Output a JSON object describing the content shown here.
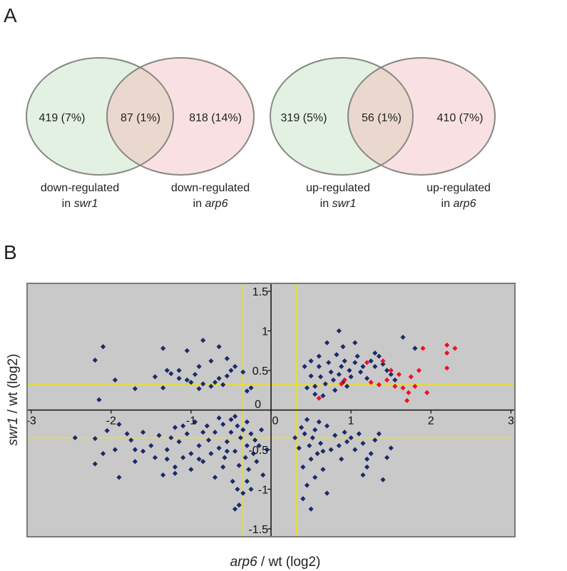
{
  "panels": {
    "a": "A",
    "b": "B"
  },
  "venn": [
    {
      "left_count": "419 (7%)",
      "overlap_count": "87 (1%)",
      "right_count": "818 (14%)",
      "left_label_line1": "down-regulated",
      "left_label_line2_prefix": "in ",
      "left_label_line2_gene": "swr1",
      "right_label_line1": "down-regulated",
      "right_label_line2_prefix": "in ",
      "right_label_line2_gene": "arp6"
    },
    {
      "left_count": "319 (5%)",
      "overlap_count": "56 (1%)",
      "right_count": "410 (7%)",
      "left_label_line1": "up-regulated",
      "left_label_line2_prefix": "in ",
      "left_label_line2_gene": "swr1",
      "right_label_line1": "up-regulated",
      "right_label_line2_prefix": "in ",
      "right_label_line2_gene": "arp6"
    }
  ],
  "colors": {
    "venn_left_fill": "#e3f1e2",
    "venn_right_fill": "#f9e1e3",
    "venn_overlap_fill": "#ead8cf",
    "venn_stroke": "#888884",
    "plot_bg": "#c9c9c9",
    "plot_border": "#7a7a7a",
    "threshold_line": "#f2e500",
    "blue_point": "#1b2a6b",
    "red_point": "#ee1122"
  },
  "chart_data": {
    "type": "scatter",
    "title": "",
    "xlabel_italic": "arp6",
    "xlabel_rest": " / wt (log2)",
    "ylabel_italic": "swr1",
    "ylabel_rest": " / wt (log2)",
    "xlim": [
      -3.05,
      3.05
    ],
    "ylim": [
      -1.6,
      1.6
    ],
    "x_ticks": [
      -3,
      -2,
      -1,
      0,
      1,
      2,
      3
    ],
    "y_ticks": [
      -1.5,
      -1,
      -0.5,
      0,
      0.5,
      1,
      1.5
    ],
    "x_tick_labels": [
      "-3",
      "-2",
      "-1",
      "0",
      "1",
      "2",
      "3"
    ],
    "y_tick_labels": [
      "-1.5",
      "-1",
      "-0.5",
      "0",
      "0.5",
      "1",
      "1.5"
    ],
    "threshold_x": [
      -0.35,
      0.32
    ],
    "threshold_y": [
      -0.35,
      0.32
    ],
    "grid": false,
    "series": [
      {
        "color": "#1b2a6b",
        "points": [
          [
            -2.2,
            0.63
          ],
          [
            -2.1,
            0.8
          ],
          [
            -1.95,
            0.38
          ],
          [
            -2.15,
            0.13
          ],
          [
            -1.7,
            0.27
          ],
          [
            -1.35,
            0.28
          ],
          [
            -1.45,
            0.42
          ],
          [
            -1.3,
            0.5
          ],
          [
            -1.25,
            0.46
          ],
          [
            -1.15,
            0.4
          ],
          [
            -1.05,
            0.38
          ],
          [
            -1.0,
            0.35
          ],
          [
            -0.9,
            0.27
          ],
          [
            -0.85,
            0.33
          ],
          [
            -0.75,
            0.3
          ],
          [
            -0.7,
            0.35
          ],
          [
            -0.65,
            0.4
          ],
          [
            -0.6,
            0.32
          ],
          [
            -0.55,
            0.43
          ],
          [
            -0.5,
            0.5
          ],
          [
            -0.45,
            0.55
          ],
          [
            -0.55,
            0.65
          ],
          [
            -0.75,
            0.62
          ],
          [
            -0.9,
            0.55
          ],
          [
            -1.05,
            0.75
          ],
          [
            -1.35,
            0.78
          ],
          [
            -0.85,
            0.88
          ],
          [
            -0.65,
            0.8
          ],
          [
            -0.35,
            0.48
          ],
          [
            -0.3,
            0.24
          ],
          [
            -0.25,
            0.28
          ],
          [
            -0.95,
            0.45
          ],
          [
            -1.15,
            0.5
          ],
          [
            -2.45,
            -0.35
          ],
          [
            -2.2,
            -0.36
          ],
          [
            -2.05,
            -0.26
          ],
          [
            -1.9,
            -0.18
          ],
          [
            -1.8,
            -0.3
          ],
          [
            -1.7,
            -0.5
          ],
          [
            -1.75,
            -0.38
          ],
          [
            -1.6,
            -0.28
          ],
          [
            -1.5,
            -0.45
          ],
          [
            -1.4,
            -0.32
          ],
          [
            -1.3,
            -0.5
          ],
          [
            -1.2,
            -0.22
          ],
          [
            -1.15,
            -0.4
          ],
          [
            -1.05,
            -0.3
          ],
          [
            -1.0,
            -0.55
          ],
          [
            -0.95,
            -0.15
          ],
          [
            -0.9,
            -0.45
          ],
          [
            -0.85,
            -0.65
          ],
          [
            -0.8,
            -0.2
          ],
          [
            -0.78,
            -0.38
          ],
          [
            -0.75,
            -0.55
          ],
          [
            -0.7,
            -0.28
          ],
          [
            -0.65,
            -0.48
          ],
          [
            -0.6,
            -0.18
          ],
          [
            -0.58,
            -0.6
          ],
          [
            -0.55,
            -0.4
          ],
          [
            -0.5,
            -0.12
          ],
          [
            -0.5,
            -0.28
          ],
          [
            -0.45,
            -0.52
          ],
          [
            -0.42,
            -0.2
          ],
          [
            -0.4,
            -0.7
          ],
          [
            -0.38,
            -0.35
          ],
          [
            -0.35,
            -0.25
          ],
          [
            -0.32,
            -0.6
          ],
          [
            -0.3,
            -0.15
          ],
          [
            -0.3,
            -0.45
          ],
          [
            -0.28,
            -0.75
          ],
          [
            -0.25,
            -0.3
          ],
          [
            -0.22,
            -0.55
          ],
          [
            -0.2,
            -0.38
          ],
          [
            -0.18,
            -0.65
          ],
          [
            -0.15,
            -0.45
          ],
          [
            -0.12,
            -0.25
          ],
          [
            -0.1,
            -0.82
          ],
          [
            -0.05,
            -0.5
          ],
          [
            -0.3,
            -0.9
          ],
          [
            -0.42,
            -1.0
          ],
          [
            -0.4,
            -1.2
          ],
          [
            -0.45,
            -1.25
          ],
          [
            -0.35,
            -1.05
          ],
          [
            -0.25,
            -1.0
          ],
          [
            -0.48,
            -0.9
          ],
          [
            -1.0,
            -0.75
          ],
          [
            -1.1,
            -0.6
          ],
          [
            -1.2,
            -0.72
          ],
          [
            -1.3,
            -0.62
          ],
          [
            -1.45,
            -0.6
          ],
          [
            -1.6,
            -0.52
          ],
          [
            -1.7,
            -0.65
          ],
          [
            -1.95,
            -0.5
          ],
          [
            -2.1,
            -0.55
          ],
          [
            -2.2,
            -0.68
          ],
          [
            -1.35,
            -0.82
          ],
          [
            -1.2,
            -0.8
          ],
          [
            -0.9,
            -0.62
          ],
          [
            -0.6,
            -0.72
          ],
          [
            -0.7,
            -0.85
          ],
          [
            -0.55,
            -0.52
          ],
          [
            -0.85,
            -0.28
          ],
          [
            -1.1,
            -0.2
          ],
          [
            -1.25,
            -0.35
          ],
          [
            -0.65,
            -0.1
          ],
          [
            -0.45,
            -0.08
          ],
          [
            -1.9,
            -0.85
          ],
          [
            0.45,
            0.28
          ],
          [
            0.5,
            0.43
          ],
          [
            0.55,
            0.3
          ],
          [
            0.6,
            0.55
          ],
          [
            0.62,
            0.42
          ],
          [
            0.68,
            0.33
          ],
          [
            0.72,
            0.6
          ],
          [
            0.75,
            0.48
          ],
          [
            0.78,
            0.38
          ],
          [
            0.8,
            0.25
          ],
          [
            0.82,
            0.7
          ],
          [
            0.85,
            0.45
          ],
          [
            0.88,
            0.55
          ],
          [
            0.9,
            0.35
          ],
          [
            0.92,
            0.62
          ],
          [
            0.95,
            0.3
          ],
          [
            0.98,
            0.5
          ],
          [
            1.0,
            0.42
          ],
          [
            1.05,
            0.6
          ],
          [
            1.08,
            0.68
          ],
          [
            1.12,
            0.48
          ],
          [
            1.15,
            0.55
          ],
          [
            1.2,
            0.4
          ],
          [
            1.25,
            0.62
          ],
          [
            1.3,
            0.55
          ],
          [
            1.35,
            0.68
          ],
          [
            1.4,
            0.58
          ],
          [
            1.45,
            0.5
          ],
          [
            1.5,
            0.45
          ],
          [
            1.55,
            0.38
          ],
          [
            0.7,
            0.85
          ],
          [
            0.85,
            1.0
          ],
          [
            1.05,
            0.85
          ],
          [
            0.6,
            0.68
          ],
          [
            0.55,
            0.2
          ],
          [
            0.5,
            0.62
          ],
          [
            0.65,
            0.18
          ],
          [
            1.3,
            0.72
          ],
          [
            1.65,
            0.92
          ],
          [
            1.8,
            0.78
          ],
          [
            0.42,
            0.55
          ],
          [
            0.9,
            0.8
          ],
          [
            0.38,
            -0.22
          ],
          [
            0.42,
            -0.3
          ],
          [
            0.45,
            -0.12
          ],
          [
            0.48,
            -0.45
          ],
          [
            0.5,
            -0.62
          ],
          [
            0.52,
            -0.35
          ],
          [
            0.55,
            -0.25
          ],
          [
            0.58,
            -0.55
          ],
          [
            0.6,
            -0.15
          ],
          [
            0.62,
            -0.42
          ],
          [
            0.7,
            -0.2
          ],
          [
            0.75,
            -0.5
          ],
          [
            0.8,
            -0.32
          ],
          [
            0.85,
            -0.45
          ],
          [
            0.88,
            -0.62
          ],
          [
            0.92,
            -0.28
          ],
          [
            0.95,
            -0.4
          ],
          [
            1.0,
            -0.35
          ],
          [
            1.05,
            -0.5
          ],
          [
            1.1,
            -0.3
          ],
          [
            1.15,
            -0.42
          ],
          [
            1.2,
            -0.72
          ],
          [
            1.25,
            -0.55
          ],
          [
            1.3,
            -0.38
          ],
          [
            1.35,
            -0.3
          ],
          [
            1.4,
            -0.88
          ],
          [
            1.45,
            -0.6
          ],
          [
            1.5,
            -0.48
          ],
          [
            0.35,
            -0.48
          ],
          [
            0.4,
            -0.72
          ],
          [
            0.45,
            -0.95
          ],
          [
            0.4,
            -1.12
          ],
          [
            0.5,
            -1.25
          ],
          [
            0.65,
            -0.75
          ],
          [
            0.55,
            -0.85
          ],
          [
            0.7,
            -1.05
          ],
          [
            0.3,
            -0.35
          ],
          [
            0.65,
            -0.52
          ],
          [
            1.2,
            -0.62
          ],
          [
            1.15,
            -0.82
          ]
        ]
      },
      {
        "color": "#ee1122",
        "points": [
          [
            1.2,
            0.6
          ],
          [
            1.4,
            0.62
          ],
          [
            1.5,
            0.5
          ],
          [
            1.6,
            0.45
          ],
          [
            1.75,
            0.42
          ],
          [
            1.85,
            0.5
          ],
          [
            1.9,
            0.78
          ],
          [
            2.2,
            0.82
          ],
          [
            2.3,
            0.78
          ],
          [
            2.2,
            0.53
          ],
          [
            2.2,
            0.72
          ],
          [
            1.25,
            0.35
          ],
          [
            1.35,
            0.32
          ],
          [
            1.45,
            0.38
          ],
          [
            1.55,
            0.3
          ],
          [
            1.65,
            0.28
          ],
          [
            1.72,
            0.22
          ],
          [
            1.7,
            0.12
          ],
          [
            1.95,
            0.22
          ],
          [
            1.8,
            0.3
          ],
          [
            0.88,
            0.33
          ],
          [
            0.92,
            0.38
          ],
          [
            0.6,
            0.15
          ]
        ]
      }
    ]
  }
}
